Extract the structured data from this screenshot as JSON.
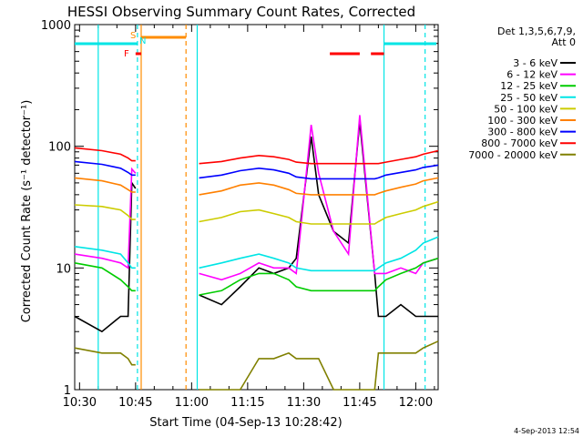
{
  "chart_data": {
    "type": "line",
    "title": "HESSI Observing Summary Count Rates, Corrected",
    "xlabel": "Start Time (04-Sep-13 10:28:42)",
    "ylabel": "Corrected Count Rate (s⁻¹ detector⁻¹)",
    "x_ticks": [
      "10:30",
      "10:45",
      "11:00",
      "11:15",
      "11:30",
      "11:45",
      "12:00"
    ],
    "x_range_minutes": [
      628.7,
      726
    ],
    "y_scale": "log",
    "ylim": [
      1,
      1000
    ],
    "y_ticks": [
      "1",
      "10",
      "100",
      "1000"
    ],
    "timestamp": "4-Sep-2013 12:54",
    "legend_header": [
      "Det 1,3,5,6,7,9,",
      "Att 0"
    ],
    "flags": [
      {
        "label": "S",
        "color": "#ff8c00"
      },
      {
        "label": "N",
        "color": "#00e5e5"
      },
      {
        "label": "F",
        "color": "#ff0000"
      }
    ],
    "series": [
      {
        "name": "3 - 6 keV",
        "color": "#000000",
        "x": [
          628.7,
          636,
          641,
          643,
          644,
          645,
          646,
          662,
          668,
          673,
          678,
          682,
          686,
          688,
          692,
          694,
          698,
          702,
          705,
          709,
          710,
          712,
          716,
          720,
          722,
          726
        ],
        "y": [
          4,
          3,
          4,
          4,
          50,
          45,
          null,
          6,
          5,
          7,
          10,
          9,
          10,
          12,
          120,
          40,
          20,
          16,
          160,
          9,
          4,
          4,
          5,
          4,
          4,
          4
        ]
      },
      {
        "name": "6 - 12 keV",
        "color": "#ff00ff",
        "x": [
          628.7,
          636,
          641,
          643,
          644,
          645,
          646,
          662,
          668,
          673,
          678,
          682,
          686,
          688,
          692,
          694,
          698,
          702,
          705,
          709,
          710,
          712,
          716,
          720,
          722,
          726
        ],
        "y": [
          13,
          12,
          11,
          10,
          65,
          60,
          null,
          9,
          8,
          9,
          11,
          10,
          10,
          9,
          150,
          60,
          20,
          13,
          180,
          9,
          9,
          9,
          10,
          9,
          11,
          12
        ]
      },
      {
        "name": "12 - 25 keV",
        "color": "#00cc00",
        "x": [
          628.7,
          636,
          641,
          643,
          644,
          645,
          646,
          662,
          668,
          673,
          678,
          682,
          686,
          688,
          692,
          694,
          698,
          702,
          705,
          709,
          710,
          712,
          716,
          720,
          722,
          726
        ],
        "y": [
          11,
          10,
          8,
          7,
          6.5,
          6.5,
          null,
          6,
          6.5,
          8,
          9,
          9,
          8,
          7,
          6.5,
          6.5,
          6.5,
          6.5,
          6.5,
          6.5,
          7,
          8,
          9,
          10,
          11,
          12
        ]
      },
      {
        "name": "25 - 50 keV",
        "color": "#00e5e5",
        "x": [
          628.7,
          636,
          641,
          643,
          644,
          645,
          646,
          662,
          668,
          673,
          678,
          682,
          686,
          688,
          692,
          694,
          698,
          702,
          705,
          709,
          710,
          712,
          716,
          720,
          722,
          726
        ],
        "y": [
          15,
          14,
          13,
          11,
          10,
          10,
          null,
          10,
          11,
          12,
          13,
          12,
          11,
          10,
          9.5,
          9.5,
          9.5,
          9.5,
          9.5,
          9.5,
          10,
          11,
          12,
          14,
          16,
          18
        ]
      },
      {
        "name": "50 - 100 keV",
        "color": "#cccc00",
        "x": [
          628.7,
          636,
          641,
          643,
          644,
          645,
          646,
          662,
          668,
          673,
          678,
          682,
          686,
          688,
          692,
          694,
          698,
          702,
          705,
          709,
          710,
          712,
          716,
          720,
          722,
          726
        ],
        "y": [
          33,
          32,
          30,
          27,
          25,
          25,
          null,
          24,
          26,
          29,
          30,
          28,
          26,
          24,
          23,
          23,
          23,
          23,
          23,
          23,
          24,
          26,
          28,
          30,
          32,
          35
        ]
      },
      {
        "name": "100 - 300 keV",
        "color": "#ff8000",
        "x": [
          628.7,
          636,
          641,
          643,
          644,
          645,
          646,
          662,
          668,
          673,
          678,
          682,
          686,
          688,
          692,
          694,
          698,
          702,
          705,
          709,
          710,
          712,
          716,
          720,
          722,
          726
        ],
        "y": [
          55,
          52,
          48,
          44,
          42,
          42,
          null,
          40,
          43,
          48,
          50,
          48,
          44,
          41,
          40,
          40,
          40,
          40,
          40,
          40,
          41,
          43,
          46,
          49,
          52,
          55
        ]
      },
      {
        "name": "300 - 800 keV",
        "color": "#0000ff",
        "x": [
          628.7,
          636,
          641,
          643,
          644,
          645,
          646,
          662,
          668,
          673,
          678,
          682,
          686,
          688,
          692,
          694,
          698,
          702,
          705,
          709,
          710,
          712,
          716,
          720,
          722,
          726
        ],
        "y": [
          75,
          71,
          66,
          61,
          58,
          58,
          null,
          55,
          58,
          63,
          66,
          64,
          60,
          56,
          54,
          54,
          54,
          54,
          54,
          54,
          55,
          58,
          61,
          64,
          67,
          70
        ]
      },
      {
        "name": "800 - 7000 keV",
        "color": "#ff0000",
        "x": [
          628.7,
          636,
          641,
          643,
          644,
          645,
          646,
          662,
          668,
          673,
          678,
          682,
          686,
          688,
          692,
          694,
          698,
          702,
          705,
          709,
          710,
          712,
          716,
          720,
          722,
          726
        ],
        "y": [
          97,
          92,
          86,
          80,
          76,
          76,
          null,
          72,
          75,
          80,
          84,
          82,
          78,
          74,
          72,
          72,
          72,
          72,
          72,
          72,
          72,
          74,
          78,
          82,
          86,
          92
        ]
      },
      {
        "name": "7000 - 20000 keV",
        "color": "#808000",
        "x": [
          628.7,
          636,
          641,
          643,
          644,
          645,
          646,
          662,
          668,
          673,
          678,
          682,
          686,
          688,
          692,
          694,
          698,
          702,
          705,
          709,
          710,
          712,
          716,
          720,
          722,
          726
        ],
        "y": [
          2.2,
          2,
          2,
          1.8,
          1.6,
          1.6,
          null,
          1,
          1,
          1,
          1.8,
          1.8,
          2,
          1.8,
          1.8,
          1.8,
          1,
          1,
          1,
          1,
          2,
          2,
          2,
          2,
          2.2,
          2.5
        ]
      }
    ]
  }
}
